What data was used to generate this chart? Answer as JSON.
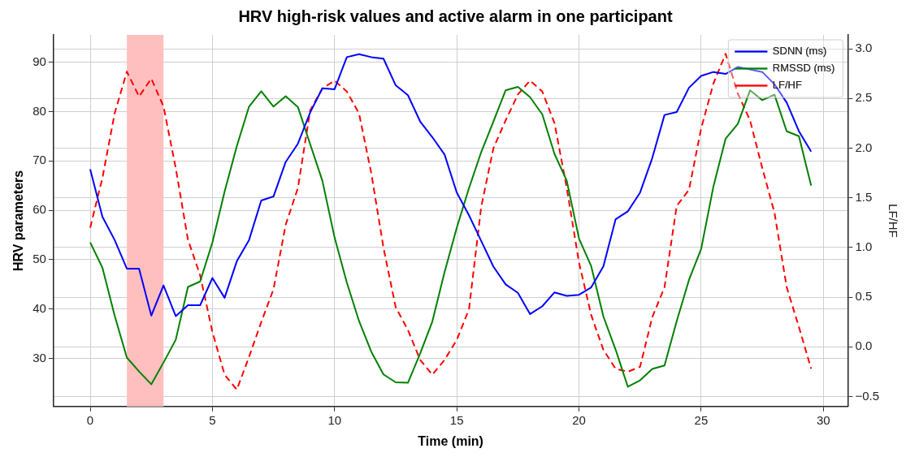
{
  "chart_data": {
    "type": "line",
    "title": "HRV high-risk values and active alarm in one participant",
    "xlabel": "Time (min)",
    "ylabel": "HRV parameters",
    "y2label": "LF/HF",
    "x": [
      0,
      0.5,
      1,
      1.5,
      2,
      2.5,
      3,
      3.5,
      4,
      4.5,
      5,
      5.5,
      6,
      6.5,
      7,
      7.5,
      8,
      8.5,
      9,
      9.5,
      10,
      10.5,
      11,
      11.5,
      12,
      12.5,
      13,
      13.5,
      14,
      14.5,
      15,
      15.5,
      16,
      16.5,
      17,
      17.5,
      18,
      18.5,
      19,
      19.5,
      20,
      20.5,
      21,
      21.5,
      22,
      22.5,
      23,
      23.5,
      24,
      24.5,
      25,
      25.5,
      26,
      26.5,
      27,
      27.5,
      28,
      28.5,
      29,
      29.5
    ],
    "series": [
      {
        "name": "SDNN (ms)",
        "color": "#0000ff",
        "line_style": "solid",
        "values": [
          68.3,
          58.7,
          54,
          48.2,
          48.2,
          38.7,
          44.8,
          38.6,
          40.8,
          40.8,
          46.3,
          42.3,
          49.7,
          54,
          62,
          62.8,
          69.8,
          73.5,
          79.8,
          84.7,
          84.5,
          91,
          91.6,
          91,
          90.7,
          85.3,
          83.3,
          78,
          74.8,
          71.3,
          63.6,
          59,
          53.8,
          48.6,
          45,
          43.3,
          39,
          40.6,
          43.4,
          42.7,
          42.9,
          44.4,
          48.7,
          58.2,
          59.8,
          63.6,
          70.6,
          79.3,
          79.9,
          84.8,
          87.2,
          88,
          87.6,
          89,
          88.5,
          88,
          85.5,
          81.8,
          76,
          71.9
        ]
      },
      {
        "name": "RMSSD (ms)",
        "color": "#008000",
        "line_style": "solid",
        "values": [
          53.5,
          48.4,
          38.7,
          30.2,
          27.4,
          24.8,
          29.2,
          33.8,
          44.5,
          45.6,
          53.5,
          63.8,
          73,
          81,
          84.1,
          81,
          83.1,
          80.9,
          73.4,
          66,
          54.5,
          45.4,
          37.6,
          31.4,
          26.8,
          25.2,
          25.1,
          31,
          37.5,
          47.5,
          56.5,
          64.5,
          71.8,
          78,
          84.3,
          85,
          82.9,
          79.4,
          71.4,
          66,
          54.3,
          48.7,
          38.5,
          31.8,
          24.3,
          25.6,
          27.9,
          28.6,
          37.6,
          45.9,
          52.2,
          64.8,
          74.5,
          77.5,
          84.3,
          82.3,
          83.4,
          76,
          75,
          65
        ]
      },
      {
        "name": "LF/HF",
        "color": "#ff0000",
        "line_style": "dashed",
        "axis": "y2",
        "values": [
          1.2,
          1.7,
          2.35,
          2.77,
          2.52,
          2.7,
          2.42,
          1.8,
          1.08,
          0.72,
          0.15,
          -0.28,
          -0.43,
          -0.1,
          0.25,
          0.58,
          1.23,
          1.6,
          2.38,
          2.6,
          2.68,
          2.57,
          2.35,
          1.75,
          1.0,
          0.4,
          0.17,
          -0.13,
          -0.28,
          -0.13,
          0.07,
          0.38,
          1.41,
          2.0,
          2.28,
          2.54,
          2.68,
          2.57,
          2.25,
          1.6,
          0.85,
          0.32,
          -0.03,
          -0.22,
          -0.25,
          -0.2,
          0.3,
          0.6,
          1.42,
          1.58,
          2.2,
          2.65,
          2.95,
          2.55,
          2.28,
          1.8,
          1.35,
          0.6,
          0.2,
          -0.22
        ]
      }
    ],
    "bands": [
      {
        "axis": "x",
        "from": 1.5,
        "to": 3,
        "color": "#ffbfbf"
      }
    ],
    "xlim": [
      -1.5,
      31
    ],
    "xticks": [
      0,
      5,
      10,
      15,
      20,
      25,
      30
    ],
    "ylim": [
      20.3,
      95.5
    ],
    "yticks": [
      30,
      40,
      50,
      60,
      70,
      80,
      90
    ],
    "y2lim": [
      -0.6,
      3.14
    ],
    "y2ticks": [
      {
        "value": -0.5,
        "label": "−0.5"
      },
      {
        "value": 0,
        "label": "0.0"
      },
      0.5,
      {
        "value": 1,
        "label": "1.0"
      },
      1.5,
      {
        "value": 2,
        "label": "2.0"
      },
      2.5,
      {
        "value": 3,
        "label": "3.0"
      }
    ],
    "grid": true,
    "legend": "top right",
    "marker": "none"
  }
}
